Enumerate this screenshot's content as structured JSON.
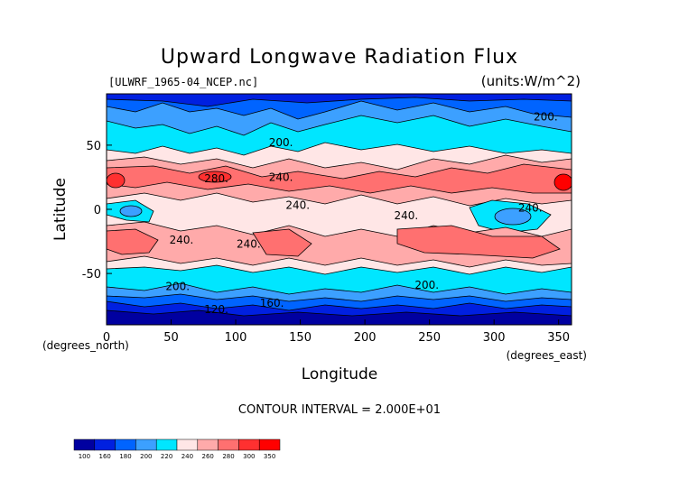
{
  "chart_data": {
    "type": "heatmap",
    "title": "Upward Longwave Radiation Flux",
    "source_file": "[ULWRF_1965-04_NCEP.nc]",
    "units_label": "(units:W/m^2)",
    "xlabel": "Longitude",
    "ylabel": "Latitude",
    "x_unit_note": "(degrees_east)",
    "y_unit_note": "(degrees_north)",
    "xlim": [
      0,
      360
    ],
    "ylim": [
      -90,
      90
    ],
    "x_ticks": [
      "0",
      "50",
      "100",
      "150",
      "200",
      "250",
      "300",
      "350"
    ],
    "y_ticks": [
      "50",
      "0",
      "-50"
    ],
    "contour_interval_text": "CONTOUR INTERVAL = 2.000E+01",
    "colorbar": {
      "levels": [
        100,
        160,
        180,
        200,
        220,
        240,
        260,
        280,
        300,
        350
      ],
      "colors": [
        "#0000a0",
        "#0020e0",
        "#0064ff",
        "#3ca0ff",
        "#00e6ff",
        "#ffe6e6",
        "#ffaaaa",
        "#ff7070",
        "#ff3030",
        "#ff0000"
      ]
    },
    "contour_labels": [
      {
        "text": "200.",
        "lon": 340,
        "lat": 72
      },
      {
        "text": "200.",
        "lon": 135,
        "lat": 52
      },
      {
        "text": "280.",
        "lon": 85,
        "lat": 24
      },
      {
        "text": "240.",
        "lon": 135,
        "lat": 25
      },
      {
        "text": "240.",
        "lon": 148,
        "lat": 3
      },
      {
        "text": "240.",
        "lon": 232,
        "lat": -5
      },
      {
        "text": "240.",
        "lon": 328,
        "lat": 1
      },
      {
        "text": "240.",
        "lon": 58,
        "lat": -24
      },
      {
        "text": "240.",
        "lon": 110,
        "lat": -27
      },
      {
        "text": "200.",
        "lon": 55,
        "lat": -60
      },
      {
        "text": "200.",
        "lon": 248,
        "lat": -59
      },
      {
        "text": "160.",
        "lon": 128,
        "lat": -73
      },
      {
        "text": "120.",
        "lon": 85,
        "lat": -78
      }
    ]
  }
}
